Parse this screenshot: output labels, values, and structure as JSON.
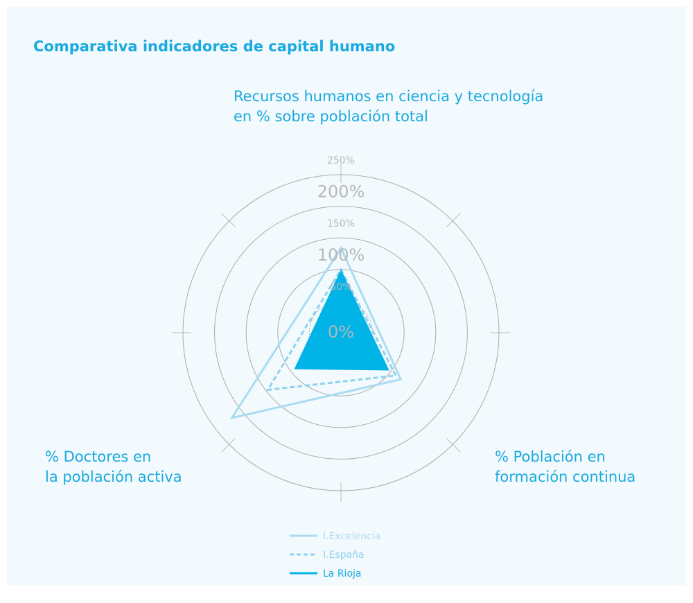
{
  "chart_data": {
    "type": "radar",
    "title": "Comparativa indicadores de capital humano",
    "categories": [
      [
        "Recursos humanos en ciencia y tecnología",
        "en % sobre población total"
      ],
      [
        "% Población en",
        "formación continua"
      ],
      [
        "% Doctores en",
        "la población activa"
      ]
    ],
    "ylim": [
      0,
      250
    ],
    "yticks": [
      {
        "value": 0,
        "label": "0%"
      },
      {
        "value": 50,
        "label": "50%"
      },
      {
        "value": 100,
        "label": "100%"
      },
      {
        "value": 150,
        "label": "150%"
      },
      {
        "value": 200,
        "label": "200%"
      },
      {
        "value": 250,
        "label": "250%"
      }
    ],
    "series": [
      {
        "name": "I.Excelencia",
        "color": "#a9dcf1",
        "style": "solid",
        "values": [
          134,
          120,
          219
        ]
      },
      {
        "name": "I.España",
        "color": "#8fd1ee",
        "style": "dashed",
        "values": [
          100,
          110,
          147
        ]
      },
      {
        "name": "La Rioja",
        "color": "#00b4e8",
        "style": "fill",
        "values": [
          100,
          97,
          94
        ]
      }
    ]
  }
}
